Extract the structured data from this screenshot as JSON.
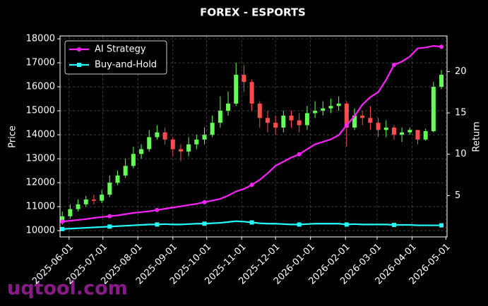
{
  "chart_data": {
    "type": "candlestick",
    "title": "FOREX - ESPORTS",
    "ylabel": "Price",
    "y2label": "Return",
    "watermark": "uqtool.com",
    "up_color": "#66ff55",
    "down_color": "#ff4d4d",
    "x": [
      "2025-05-26",
      "2025-06-02",
      "2025-06-09",
      "2025-06-16",
      "2025-06-23",
      "2025-06-30",
      "2025-07-07",
      "2025-07-14",
      "2025-07-21",
      "2025-07-28",
      "2025-08-04",
      "2025-08-11",
      "2025-08-18",
      "2025-08-25",
      "2025-09-01",
      "2025-09-08",
      "2025-09-15",
      "2025-09-22",
      "2025-09-29",
      "2025-10-06",
      "2025-10-13",
      "2025-10-20",
      "2025-10-27",
      "2025-11-03",
      "2025-11-10",
      "2025-11-17",
      "2025-11-24",
      "2025-12-01",
      "2025-12-08",
      "2025-12-15",
      "2025-12-22",
      "2025-12-29",
      "2026-01-05",
      "2026-01-12",
      "2026-01-19",
      "2026-01-26",
      "2026-02-02",
      "2026-02-09",
      "2026-02-16",
      "2026-02-23",
      "2026-03-02",
      "2026-03-09",
      "2026-03-16",
      "2026-03-23",
      "2026-03-30",
      "2026-04-06",
      "2026-04-13",
      "2026-04-20",
      "2026-04-27"
    ],
    "open": [
      10400,
      10600,
      10900,
      11100,
      11300,
      11250,
      11500,
      12000,
      12300,
      12700,
      13200,
      13400,
      13900,
      14100,
      13800,
      13400,
      13300,
      13600,
      13800,
      14000,
      14500,
      15000,
      15300,
      16500,
      16200,
      15300,
      14700,
      14500,
      14300,
      14800,
      14600,
      14400,
      14900,
      15000,
      15100,
      15200,
      15300,
      14300,
      14800,
      14700,
      14500,
      14200,
      14300,
      14000,
      14100,
      14200,
      13800,
      14150,
      16000
    ],
    "high": [
      10800,
      11100,
      11300,
      11450,
      11500,
      11700,
      12300,
      12500,
      13000,
      13500,
      13600,
      14200,
      14400,
      14300,
      13900,
      13600,
      13900,
      14000,
      14300,
      14800,
      15600,
      15800,
      17000,
      16900,
      16300,
      15400,
      15000,
      14800,
      15000,
      15000,
      14900,
      15200,
      15400,
      15400,
      15500,
      15600,
      15400,
      15100,
      15000,
      15200,
      14700,
      14600,
      14400,
      14300,
      14300,
      14200,
      14250,
      16200,
      16700
    ],
    "low": [
      10250,
      10500,
      10800,
      11000,
      11100,
      11150,
      11400,
      11900,
      12200,
      12600,
      13000,
      13300,
      13800,
      13600,
      13100,
      12900,
      13100,
      13400,
      13600,
      13900,
      14300,
      14800,
      15200,
      15800,
      15000,
      14300,
      14100,
      14000,
      14100,
      14300,
      14100,
      14200,
      14700,
      14800,
      14900,
      15000,
      13500,
      14200,
      14400,
      14200,
      13900,
      13900,
      13800,
      13700,
      14000,
      13600,
      13750,
      14100,
      15900
    ],
    "close": [
      10600,
      10900,
      11100,
      11300,
      11250,
      11500,
      12000,
      12300,
      12700,
      13200,
      13400,
      13900,
      14100,
      13800,
      13400,
      13300,
      13600,
      13800,
      14000,
      14500,
      15000,
      15300,
      16500,
      16200,
      15300,
      14700,
      14500,
      14300,
      14800,
      14600,
      14400,
      14900,
      15000,
      15100,
      15200,
      15300,
      14300,
      14800,
      14700,
      14500,
      14200,
      14300,
      14000,
      14100,
      14200,
      13800,
      14150,
      16000,
      16500
    ],
    "series": [
      {
        "name": "AI Strategy",
        "color": "#ff22ff",
        "marker": "circle",
        "axis": "y2",
        "values": [
          1.85,
          1.95,
          2.05,
          2.15,
          2.3,
          2.4,
          2.5,
          2.6,
          2.75,
          2.9,
          3.0,
          3.1,
          3.25,
          3.4,
          3.55,
          3.7,
          3.85,
          4.0,
          4.2,
          4.4,
          4.6,
          5.0,
          5.5,
          5.8,
          6.3,
          6.9,
          7.7,
          8.6,
          9.1,
          9.6,
          10.0,
          10.6,
          11.2,
          11.5,
          11.8,
          12.3,
          13.5,
          14.6,
          16.0,
          16.9,
          17.5,
          19.0,
          20.8,
          21.2,
          21.8,
          22.8,
          22.9,
          23.1,
          23.0
        ]
      },
      {
        "name": "Buy-and-Hold",
        "color": "#22ffff",
        "marker": "square",
        "axis": "y2",
        "values": [
          0.95,
          1.0,
          1.05,
          1.1,
          1.15,
          1.2,
          1.25,
          1.3,
          1.35,
          1.4,
          1.45,
          1.5,
          1.5,
          1.55,
          1.5,
          1.5,
          1.55,
          1.6,
          1.6,
          1.65,
          1.7,
          1.8,
          1.9,
          1.85,
          1.75,
          1.65,
          1.6,
          1.6,
          1.55,
          1.5,
          1.5,
          1.55,
          1.6,
          1.6,
          1.6,
          1.6,
          1.5,
          1.55,
          1.5,
          1.5,
          1.5,
          1.5,
          1.45,
          1.45,
          1.45,
          1.4,
          1.4,
          1.4,
          1.4
        ]
      }
    ],
    "xlim": [
      "2025-05-24",
      "2026-05-02"
    ],
    "xticks": [
      "2025-06-01",
      "2025-07-01",
      "2025-08-01",
      "2025-09-01",
      "2025-10-01",
      "2025-11-01",
      "2025-12-01",
      "2026-01-01",
      "2026-02-01",
      "2026-03-01",
      "2026-04-01",
      "2026-05-01"
    ],
    "ylim": [
      9740,
      18120
    ],
    "yticks": [
      10000,
      11000,
      12000,
      13000,
      14000,
      15000,
      16000,
      17000,
      18000
    ],
    "y2lim": [
      0,
      24.3
    ],
    "y2ticks": [
      5,
      10,
      15,
      20
    ],
    "grid": true,
    "legend": "upper left"
  }
}
